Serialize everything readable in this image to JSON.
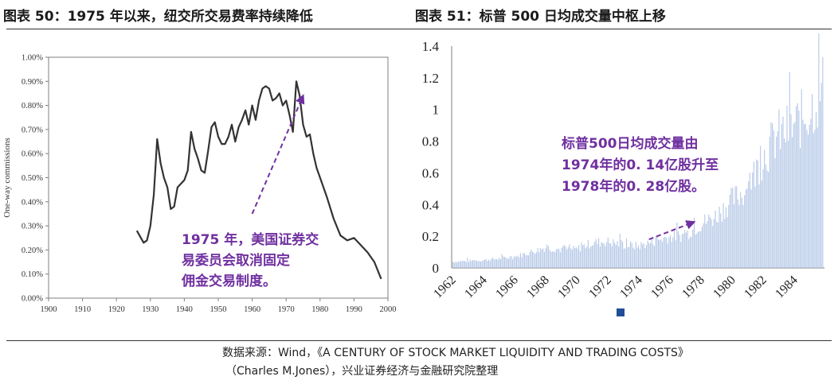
{
  "header": {
    "left_title": "图表 50：1975 年以来，纽交所交易费率持续降低",
    "right_title": "图表 51：标普 500 日均成交量中枢上移"
  },
  "source": {
    "line1": "数据来源：Wind，《A CENTURY OF STOCK MARKET LIQUIDITY AND TRADING COSTS》",
    "line2": "（Charles M.Jones），兴业证券经济与金融研究院整理"
  },
  "colors": {
    "left_line": "#333333",
    "right_bars": "#b4c7e7",
    "annotation": "#7030a0",
    "legend_marker": "#1f4e99"
  },
  "chart_data": [
    {
      "type": "line",
      "ylabel": "One-way commissions",
      "xlabel": "",
      "xlim": [
        1900,
        2000
      ],
      "ylim": [
        0,
        0.01
      ],
      "grid": false,
      "x_ticks": [
        "1900",
        "1910",
        "1920",
        "1930",
        "1940",
        "1950",
        "1960",
        "1970",
        "1980",
        "1990",
        "2000"
      ],
      "y_ticks": [
        "0.00%",
        "0.10%",
        "0.20%",
        "0.30%",
        "0.40%",
        "0.50%",
        "0.60%",
        "0.70%",
        "0.80%",
        "0.90%",
        "1.00%"
      ],
      "series": [
        {
          "x": [
            1926,
            1928,
            1929,
            1930,
            1931,
            1932,
            1933,
            1934,
            1935,
            1936,
            1937,
            1938,
            1940,
            1941,
            1942,
            1943,
            1944,
            1945,
            1946,
            1947,
            1948,
            1949,
            1950,
            1951,
            1952,
            1953,
            1954,
            1955,
            1956,
            1957,
            1958,
            1959,
            1960,
            1961,
            1962,
            1963,
            1964,
            1965,
            1966,
            1967,
            1968,
            1969,
            1970,
            1971,
            1972,
            1973,
            1974,
            1975,
            1976,
            1977,
            1978,
            1979,
            1980,
            1982,
            1984,
            1986,
            1988,
            1990,
            1992,
            1994,
            1996,
            1998
          ],
          "values": [
            0.0028,
            0.0023,
            0.0024,
            0.003,
            0.0043,
            0.0066,
            0.0056,
            0.005,
            0.0046,
            0.0037,
            0.0038,
            0.0046,
            0.0049,
            0.0053,
            0.0069,
            0.0062,
            0.0058,
            0.0053,
            0.0052,
            0.0061,
            0.0071,
            0.0073,
            0.0067,
            0.0064,
            0.0064,
            0.0067,
            0.0072,
            0.0065,
            0.0071,
            0.0074,
            0.0078,
            0.0072,
            0.008,
            0.0074,
            0.0082,
            0.0087,
            0.0088,
            0.0087,
            0.0082,
            0.0083,
            0.0085,
            0.008,
            0.0082,
            0.0076,
            0.0069,
            0.009,
            0.0084,
            0.0072,
            0.0067,
            0.0068,
            0.006,
            0.0054,
            0.005,
            0.0042,
            0.0033,
            0.0026,
            0.0024,
            0.0025,
            0.0022,
            0.0019,
            0.0015,
            0.0008
          ]
        }
      ],
      "annotation": {
        "lines": [
          "1975 年，美国证券交",
          "易委员会取消固定",
          "佣金交易制度。"
        ],
        "arrow_from": [
          1960,
          0.0035
        ],
        "arrow_to": [
          1975,
          0.0084
        ]
      }
    },
    {
      "type": "bar",
      "xlabel": "",
      "ylabel": "",
      "ylim": [
        0,
        1.4
      ],
      "grid": false,
      "y_ticks": [
        "0",
        "0.2",
        "0.4",
        "0.6",
        "0.8",
        "1",
        "1.2",
        "1.4"
      ],
      "x_ticks": [
        "1962",
        "1964",
        "1966",
        "1968",
        "1970",
        "1972",
        "1974",
        "1976",
        "1978",
        "1980",
        "1982",
        "1984"
      ],
      "xlim": [
        1962,
        1986
      ],
      "series": [
        {
          "anchors_x": [
            1962,
            1963,
            1964,
            1965,
            1966,
            1967,
            1968,
            1969,
            1970,
            1971,
            1972,
            1973,
            1974,
            1975,
            1976,
            1977,
            1978,
            1979,
            1980,
            1981,
            1982,
            1983,
            1984,
            1985,
            1986
          ],
          "anchors_y": [
            0.04,
            0.045,
            0.05,
            0.06,
            0.07,
            0.1,
            0.13,
            0.12,
            0.12,
            0.16,
            0.17,
            0.15,
            0.14,
            0.17,
            0.2,
            0.21,
            0.28,
            0.33,
            0.43,
            0.5,
            0.7,
            0.85,
            0.9,
            1.0,
            1.15
          ]
        }
      ],
      "annotation": {
        "lines": [
          "标普500日均成交量由",
          "1974年的0. 14亿股升至",
          "1978年的0. 28亿股。"
        ],
        "arrow_from": [
          1974.7,
          0.18
        ],
        "arrow_to": [
          1977.6,
          0.29
        ]
      }
    }
  ]
}
